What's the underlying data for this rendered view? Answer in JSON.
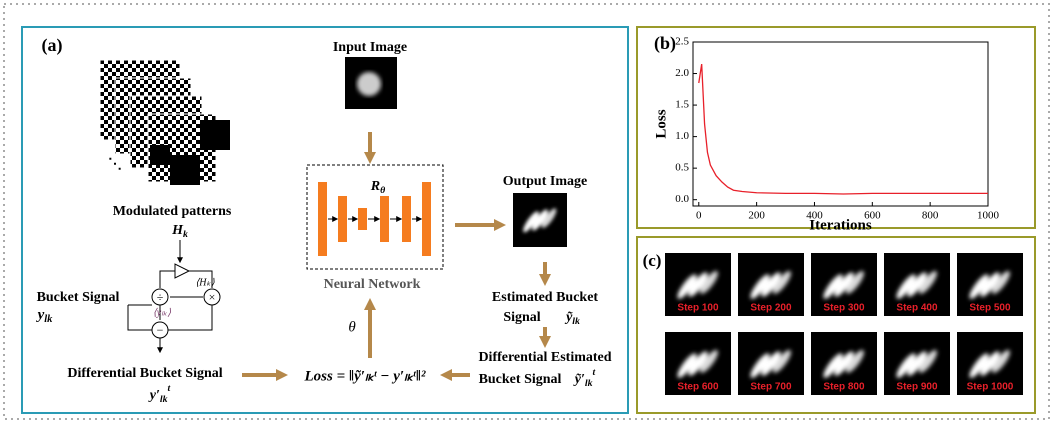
{
  "panel_a": {
    "label": "(a)",
    "input_image": "Input Image",
    "modulated_patterns": "Modulated patterns",
    "ellipsis": "⋱",
    "H_k": {
      "base": "H",
      "sub": "k"
    },
    "mean_H": "⟨Hₖ⟩",
    "mean_y": "⟨yₗₖ⟩",
    "ops": [
      "÷",
      "×",
      "−"
    ],
    "bucket_signal": "Bucket Signal",
    "y_lk": {
      "base": "y",
      "sub": "lk"
    },
    "differential_bucket_signal": "Differential Bucket Signal",
    "y_prime": {
      "base": "y′",
      "sub": "lk",
      "sup": "t"
    },
    "neural_network": "Neural Network",
    "r_theta": {
      "base": "R",
      "sub": "θ"
    },
    "output_image": "Output Image",
    "estimated_bucket_signal": [
      "Estimated Bucket",
      "Signal"
    ],
    "y_tilde": {
      "base": "ỹ",
      "sub": "lk"
    },
    "differential_estimated": [
      "Differential Estimated",
      "Bucket Signal"
    ],
    "y_tilde_prime": {
      "base": "ỹ′",
      "sub": "lk",
      "sup": "t"
    },
    "theta": "θ",
    "loss": "Loss = ‖ỹ′ₗₖᵗ − y′ₗₖᵗ‖²"
  },
  "chart_data": {
    "type": "line",
    "panel_label": "(b)",
    "xlabel": "Iterations",
    "ylabel": "Loss",
    "x": [
      0,
      10,
      20,
      30,
      40,
      60,
      80,
      100,
      120,
      150,
      200,
      300,
      400,
      500,
      600,
      700,
      800,
      900,
      1000
    ],
    "values": [
      1.85,
      2.15,
      1.2,
      0.75,
      0.55,
      0.38,
      0.28,
      0.2,
      0.15,
      0.13,
      0.11,
      0.1,
      0.1,
      0.09,
      0.1,
      0.1,
      0.1,
      0.1,
      0.1
    ],
    "color": "#e8202a",
    "xlim": [
      -20,
      1000
    ],
    "ylim": [
      -0.1,
      2.5
    ],
    "xticks": [
      0,
      200,
      400,
      600,
      800,
      1000
    ],
    "yticks": [
      {
        "value": 0,
        "label": "0.0"
      },
      0.5,
      {
        "value": 1,
        "label": "1.0"
      },
      1.5,
      {
        "value": 2,
        "label": "2.0"
      },
      2.5
    ]
  },
  "panel_c": {
    "label": "(c)",
    "steps": [
      "Step 100",
      "Step 200",
      "Step 300",
      "Step 400",
      "Step 500",
      "Step 600",
      "Step 700",
      "Step 800",
      "Step 900",
      "Step 1000"
    ]
  }
}
